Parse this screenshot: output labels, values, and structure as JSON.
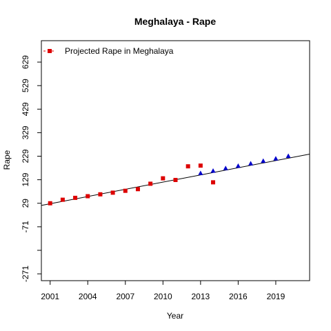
{
  "chart_data": {
    "type": "scatter",
    "title": "Meghalaya  -  Rape",
    "xlabel": "Year",
    "ylabel": "Rape",
    "xlim": [
      2000.3,
      2021.7
    ],
    "ylim": [
      -300,
      720
    ],
    "x_ticks": [
      2001,
      2004,
      2007,
      2010,
      2013,
      2016,
      2019
    ],
    "y_ticks": [
      -271,
      -71,
      29,
      129,
      229,
      329,
      429,
      529,
      629
    ],
    "y_tick_labels": [
      "-271",
      "-71",
      "29",
      "129",
      "229",
      "329",
      "429",
      "529",
      "629"
    ],
    "y_minor_ticks": [
      -171
    ],
    "legend": {
      "position": "top-left",
      "entries": [
        {
          "label": "Projected Rape in Meghalaya",
          "marker": "square",
          "color": "#dd0000"
        }
      ]
    },
    "series": [
      {
        "marker": "square",
        "color": "#dd0000",
        "points": [
          {
            "x": 2001,
            "y": 29
          },
          {
            "x": 2002,
            "y": 44
          },
          {
            "x": 2003,
            "y": 52
          },
          {
            "x": 2004,
            "y": 59
          },
          {
            "x": 2005,
            "y": 67
          },
          {
            "x": 2006,
            "y": 74
          },
          {
            "x": 2007,
            "y": 82
          },
          {
            "x": 2008,
            "y": 89
          },
          {
            "x": 2009,
            "y": 112
          },
          {
            "x": 2010,
            "y": 135
          },
          {
            "x": 2011,
            "y": 128
          },
          {
            "x": 2012,
            "y": 186
          },
          {
            "x": 2013,
            "y": 189
          },
          {
            "x": 2014,
            "y": 118
          }
        ]
      },
      {
        "marker": "triangle",
        "color": "#0000cc",
        "points": [
          {
            "x": 2013,
            "y": 156
          },
          {
            "x": 2014,
            "y": 166
          },
          {
            "x": 2015,
            "y": 177
          },
          {
            "x": 2016,
            "y": 187
          },
          {
            "x": 2017,
            "y": 197
          },
          {
            "x": 2018,
            "y": 208
          },
          {
            "x": 2019,
            "y": 218
          },
          {
            "x": 2020,
            "y": 229
          }
        ]
      }
    ],
    "trend_line": {
      "color": "#000000",
      "start": {
        "x": 2000.3,
        "y": 20
      },
      "end": {
        "x": 2021.7,
        "y": 238
      }
    }
  }
}
